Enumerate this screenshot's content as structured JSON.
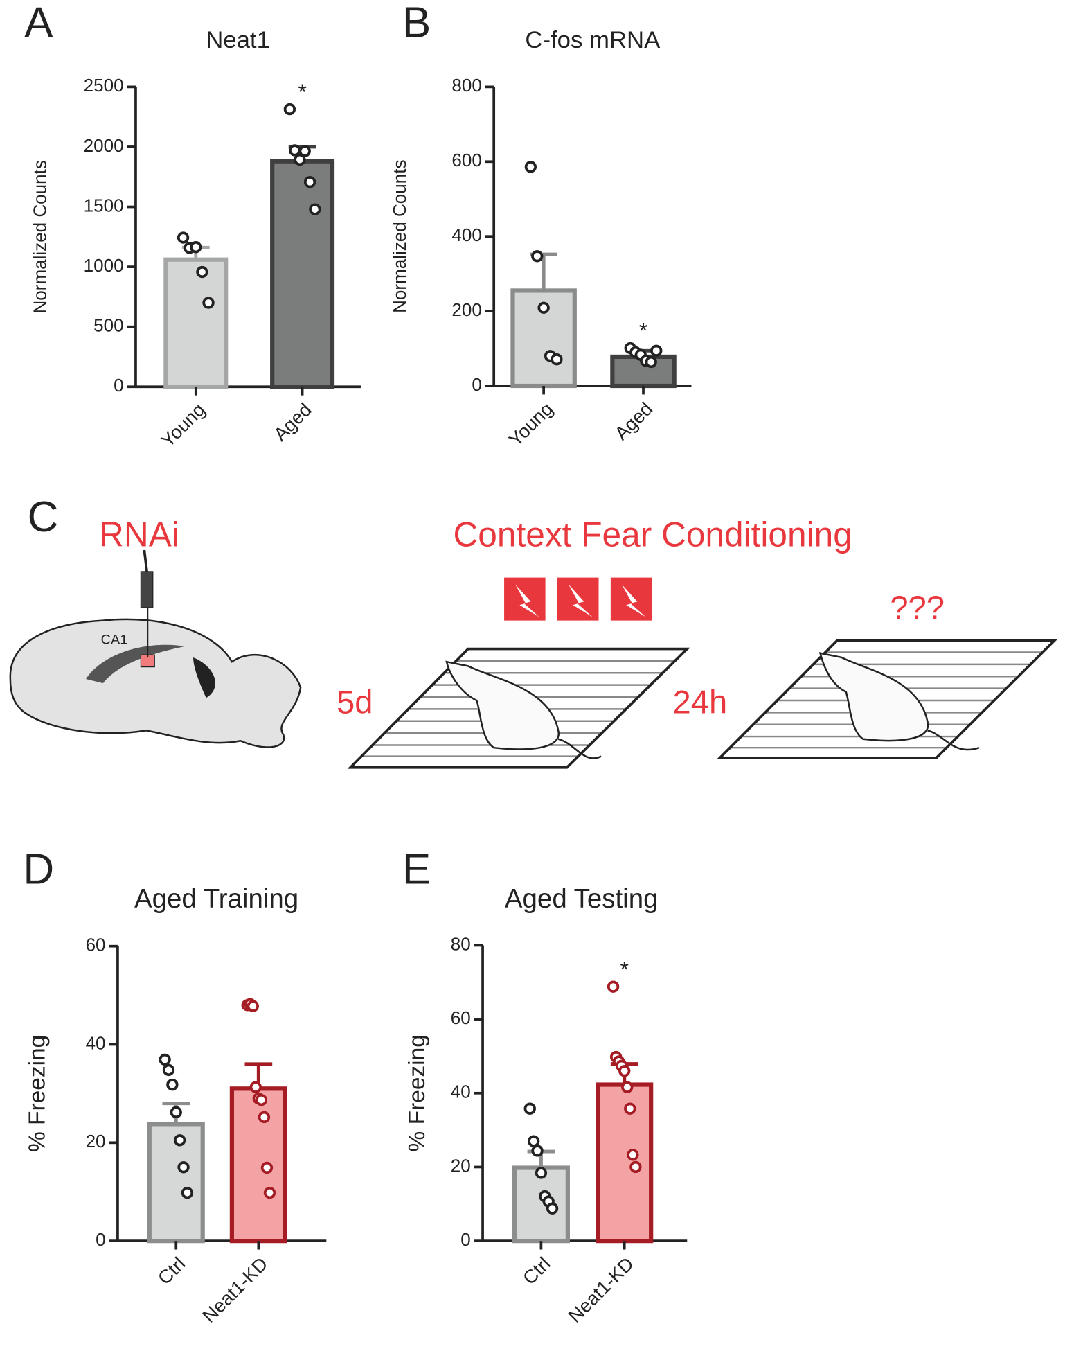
{
  "chart_data": [
    {
      "type": "bar",
      "panel": "A",
      "title": "Neat1",
      "y_label": "Normalized Counts",
      "categories": [
        "Young",
        "Aged"
      ],
      "values": [
        1060,
        1880
      ],
      "errors": [
        100,
        120
      ],
      "points": [
        [
          1243,
          1157,
          1164,
          957,
          700
        ],
        [
          2314,
          1971,
          1893,
          1964,
          1707,
          1479
        ]
      ],
      "colors": [
        "#d4d6d5",
        "#7b7c7c"
      ],
      "edge_colors": [
        "#a5a7a6",
        "#3f3f3f"
      ],
      "point_colors": [
        "#222222",
        "#222222"
      ],
      "annotation": {
        "text": "*",
        "category": "Aged"
      },
      "ylim": [
        0,
        2500
      ],
      "yticks": [
        0,
        500,
        1000,
        1500,
        2000,
        2500
      ]
    },
    {
      "type": "bar",
      "panel": "B",
      "title": "C-fos mRNA",
      "y_label": "Normalized Counts",
      "categories": [
        "Young",
        "Aged"
      ],
      "values": [
        255,
        78
      ],
      "errors": [
        97,
        16
      ],
      "points": [
        [
          586,
          347,
          209,
          80,
          71
        ],
        [
          101,
          90,
          83,
          67,
          64,
          94
        ]
      ],
      "colors": [
        "#d4d6d5",
        "#7b7c7c"
      ],
      "edge_colors": [
        "#8a8b8b",
        "#3f3f3f"
      ],
      "point_colors": [
        "#222222",
        "#222222"
      ],
      "annotation": {
        "text": "*",
        "category": "Aged"
      },
      "ylim": [
        0,
        800
      ],
      "yticks": [
        0,
        200,
        400,
        600,
        800
      ]
    },
    {
      "type": "bar",
      "panel": "D",
      "title": "Aged  Training",
      "y_label": "% Freezing",
      "categories": [
        "Ctrl",
        "Neat1-KD"
      ],
      "values": [
        23.8,
        31
      ],
      "errors": [
        4.2,
        5
      ],
      "points": [
        [
          36.9,
          34.8,
          31.8,
          26.2,
          20.5,
          15,
          9.8
        ],
        [
          48,
          48.2,
          47.8,
          31.3,
          29,
          28.7,
          25.2,
          14.9,
          9.8
        ]
      ],
      "colors": [
        "#d6d8d7",
        "#f4a3a5"
      ],
      "edge_colors": [
        "#8c8e8d",
        "#a51c24"
      ],
      "point_colors": [
        "#222222",
        "#a51c24"
      ],
      "ylim": [
        0,
        60
      ],
      "yticks": [
        0,
        20,
        40,
        60
      ]
    },
    {
      "type": "bar",
      "panel": "E",
      "title": "Aged Testing",
      "y_label": "% Freezing",
      "categories": [
        "Ctrl",
        "Neat1-KD"
      ],
      "values": [
        19.8,
        42.3
      ],
      "errors": [
        4.4,
        5.6
      ],
      "points": [
        [
          35.8,
          27,
          24.4,
          18.4,
          12.1,
          10.7,
          8.8
        ],
        [
          68.8,
          49.8,
          48.6,
          47.4,
          46,
          41.6,
          35.8,
          23.3,
          20
        ]
      ],
      "colors": [
        "#d6d8d7",
        "#f4a3a5"
      ],
      "edge_colors": [
        "#8c8e8d",
        "#a51c24"
      ],
      "point_colors": [
        "#222222",
        "#a51c24"
      ],
      "annotation": {
        "text": "*",
        "category": "Neat1-KD"
      },
      "ylim": [
        0,
        80
      ],
      "yticks": [
        0,
        20,
        40,
        60,
        80
      ]
    }
  ],
  "diagram": {
    "panel": "C",
    "injection": "RNAi",
    "region": "CA1",
    "title": "Context Fear Conditioning",
    "delay_1": "5d",
    "delay_2": "24h",
    "outcome": "???"
  }
}
